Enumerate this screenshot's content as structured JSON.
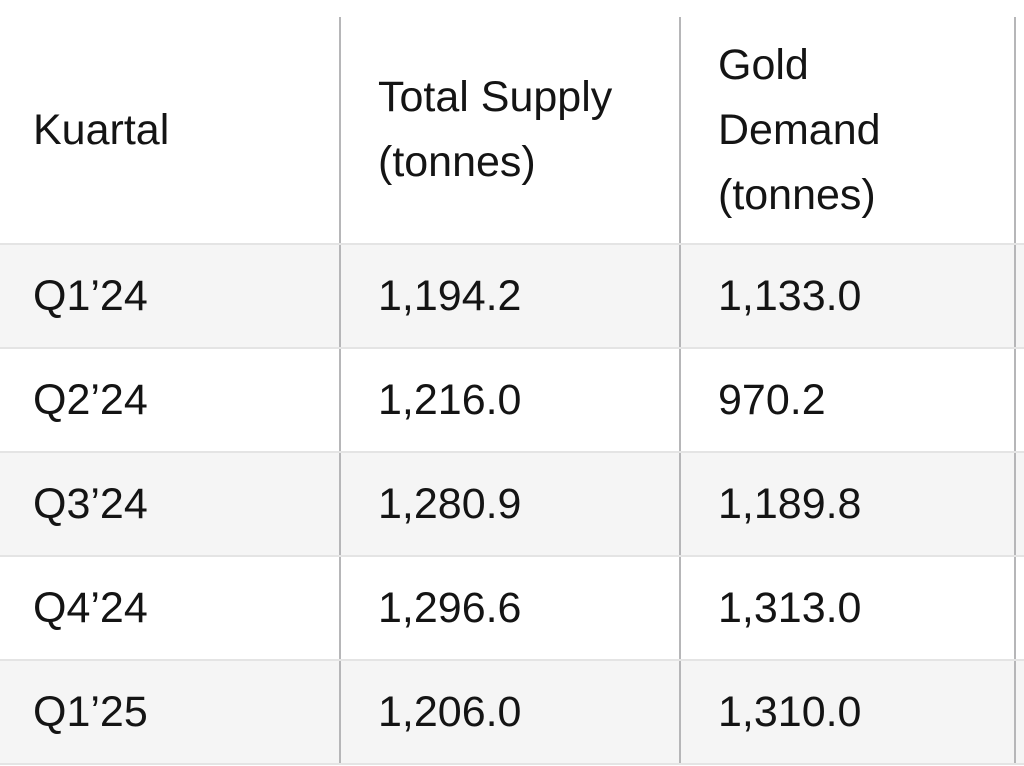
{
  "table": {
    "header_display": [
      "Kuartal",
      "Total Supply\n(tonnes)",
      "Gold\nDemand\n(tonnes)"
    ]
  },
  "chart_data": {
    "type": "table",
    "title": "",
    "columns": [
      "Kuartal",
      "Total Supply (tonnes)",
      "Gold Demand (tonnes)"
    ],
    "rows": [
      [
        "Q1’24",
        "1,194.2",
        "1,133.0"
      ],
      [
        "Q2’24",
        "1,216.0",
        "970.2"
      ],
      [
        "Q3’24",
        "1,280.9",
        "1,189.8"
      ],
      [
        "Q4’24",
        "1,296.6",
        "1,313.0"
      ],
      [
        "Q1’25",
        "1,206.0",
        "1,310.0"
      ]
    ],
    "categories": [
      "Q1’24",
      "Q2’24",
      "Q3’24",
      "Q4’24",
      "Q1’25"
    ],
    "series": [
      {
        "name": "Total Supply (tonnes)",
        "values": [
          1194.2,
          1216.0,
          1280.9,
          1296.6,
          1206.0
        ]
      },
      {
        "name": "Gold Demand (tonnes)",
        "values": [
          1133.0,
          970.2,
          1189.8,
          1313.0,
          1310.0
        ]
      }
    ],
    "layout": {
      "zebra_striping": true,
      "grid": "on",
      "fourth_column_cut_off": true
    }
  },
  "colors": {
    "row_stripe": "#f5f5f5",
    "row_plain": "#ffffff",
    "border_vertical": "#b6b6b8",
    "border_horizontal": "#e4e4e4",
    "text": "#141414"
  }
}
